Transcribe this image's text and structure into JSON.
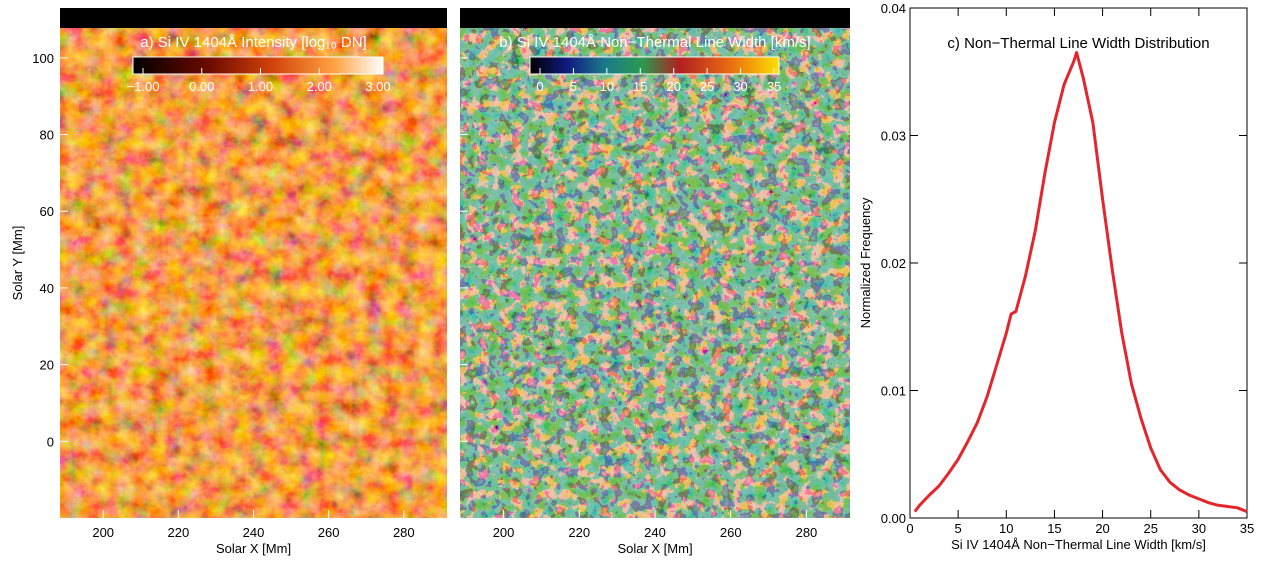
{
  "chart_data": [
    {
      "type": "image",
      "title": "a) Si IV 1404Å Intensity [log₁₀ DN]",
      "xlabel": "Solar X [Mm]",
      "ylabel": "Solar Y [Mm]",
      "xlim": [
        188.5,
        291.5
      ],
      "ylim": [
        -20,
        113
      ],
      "xticks": [
        200,
        220,
        240,
        260,
        280
      ],
      "yticks": [
        0,
        20,
        40,
        60,
        80,
        100
      ],
      "colorbar": {
        "lim": [
          -1,
          3
        ],
        "ticks": [
          {
            "value": -1,
            "label": "−1.00"
          },
          {
            "value": 0,
            "label": "0.00"
          },
          {
            "value": 1,
            "label": "1.00"
          },
          {
            "value": 2,
            "label": "2.00"
          },
          {
            "value": 3,
            "label": "3.00"
          }
        ]
      }
    },
    {
      "type": "image",
      "title": "b) Si IV 1404Å Non−Thermal Line Width [km/s]",
      "xlabel": "Solar X [Mm]",
      "xlim": [
        188.5,
        291.5
      ],
      "ylim": [
        -20,
        113
      ],
      "xticks": [
        200,
        220,
        240,
        260,
        280
      ],
      "yticks": [
        0,
        20,
        40,
        60,
        80,
        100
      ],
      "colorbar": {
        "lim": [
          0,
          35
        ],
        "ticks": [
          0,
          5,
          10,
          15,
          20,
          25,
          30,
          35
        ]
      }
    },
    {
      "type": "line",
      "title": "c) Non−Thermal Line Width Distribution",
      "xlabel": "Si IV 1404Å Non−Thermal Line Width [km/s]",
      "ylabel": "Normalized Frequency",
      "xlim": [
        0,
        35
      ],
      "ylim": [
        0,
        0.04
      ],
      "xticks": [
        0,
        5,
        10,
        15,
        20,
        25,
        30,
        35
      ],
      "yticks": [
        {
          "value": 0,
          "label": "0.00"
        },
        {
          "value": 0.01,
          "label": "0.01"
        },
        {
          "value": 0.02,
          "label": "0.02"
        },
        {
          "value": 0.03,
          "label": "0.03"
        },
        {
          "value": 0.04,
          "label": "0.04"
        }
      ],
      "color": "#e3262c",
      "x": [
        0.5,
        1,
        2,
        3,
        4,
        5,
        6,
        7,
        8,
        9,
        10,
        10.5,
        11,
        12,
        13,
        14,
        15,
        16,
        17,
        17.3,
        18,
        19,
        20,
        21,
        22,
        23,
        24,
        25,
        26,
        27,
        28,
        29,
        30,
        31,
        32,
        33,
        34,
        35
      ],
      "values": [
        0.0005,
        0.001,
        0.0018,
        0.0025,
        0.0035,
        0.0046,
        0.006,
        0.0075,
        0.0095,
        0.012,
        0.0145,
        0.016,
        0.0162,
        0.019,
        0.0225,
        0.027,
        0.031,
        0.034,
        0.0358,
        0.0365,
        0.0345,
        0.031,
        0.025,
        0.0195,
        0.0145,
        0.0105,
        0.0078,
        0.0055,
        0.0038,
        0.0028,
        0.0022,
        0.0018,
        0.0015,
        0.0012,
        0.001,
        0.0009,
        0.0008,
        0.0005
      ]
    }
  ]
}
